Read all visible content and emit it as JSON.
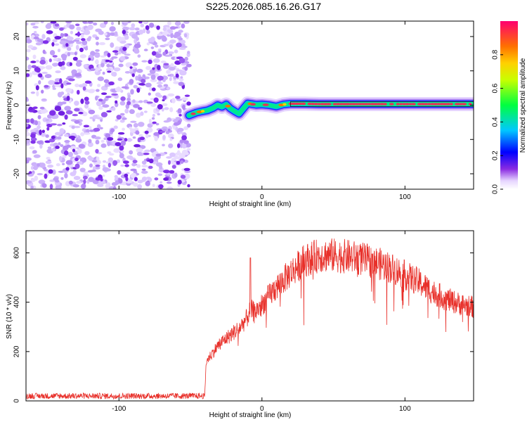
{
  "title": "S225.2026.085.16.26.G17",
  "colors": {
    "snr_line": "#e8302a",
    "track_core": "#e8305a",
    "noise": "#7a1fe6"
  },
  "chart_data": [
    {
      "type": "heatmap",
      "xlabel": "Height of straight line (km)",
      "ylabel": "Frequency (Hz)",
      "xlim": [
        -165,
        148
      ],
      "ylim": [
        -24.5,
        24.5
      ],
      "xticks": [
        -100,
        0,
        100
      ],
      "yticks": [
        20,
        10,
        0,
        -10,
        -20
      ],
      "colorbar": {
        "label": "Normalized spectral amplitude",
        "range": [
          0,
          1
        ],
        "ticks": [
          "0.0",
          "0.2",
          "0.4",
          "0.6",
          "0.8"
        ]
      },
      "noise_region_x": [
        -165,
        -51
      ],
      "track": {
        "x": [
          -51,
          -46,
          -42,
          -38,
          -34,
          -31,
          -28,
          -25,
          -22,
          -19,
          -16,
          -13,
          -10,
          -7,
          -4,
          0,
          5,
          10,
          15,
          20,
          30,
          40,
          60,
          80,
          100,
          120,
          148
        ],
        "y": [
          -3.0,
          -2.2,
          -1.8,
          -1.5,
          -0.8,
          0.0,
          -0.5,
          0.2,
          -1.0,
          -1.8,
          -2.5,
          -1.0,
          0.5,
          0.3,
          0.1,
          0.2,
          0.0,
          -0.4,
          0.2,
          0.4,
          0.4,
          0.3,
          0.3,
          0.3,
          0.3,
          0.3,
          0.3
        ]
      }
    },
    {
      "type": "line",
      "xlabel": "Height of straight line (km)",
      "ylabel": "SNR (10 * v/v)",
      "xlim": [
        -165,
        148
      ],
      "ylim": [
        0,
        690
      ],
      "xticks": [
        -100,
        0,
        100
      ],
      "yticks": [
        0,
        200,
        400,
        600
      ],
      "series": [
        {
          "knots_x": [
            -165,
            -40,
            -39,
            -30,
            -15,
            -10,
            -8,
            -5,
            0,
            10,
            20,
            30,
            40,
            50,
            60,
            70,
            80,
            90,
            100,
            110,
            120,
            130,
            140,
            148
          ],
          "knots_y": [
            20,
            20,
            160,
            230,
            300,
            340,
            370,
            360,
            390,
            460,
            520,
            570,
            590,
            590,
            585,
            575,
            560,
            540,
            510,
            480,
            440,
            410,
            390,
            380
          ],
          "spike": {
            "x": -8,
            "y": 580
          }
        }
      ]
    }
  ]
}
